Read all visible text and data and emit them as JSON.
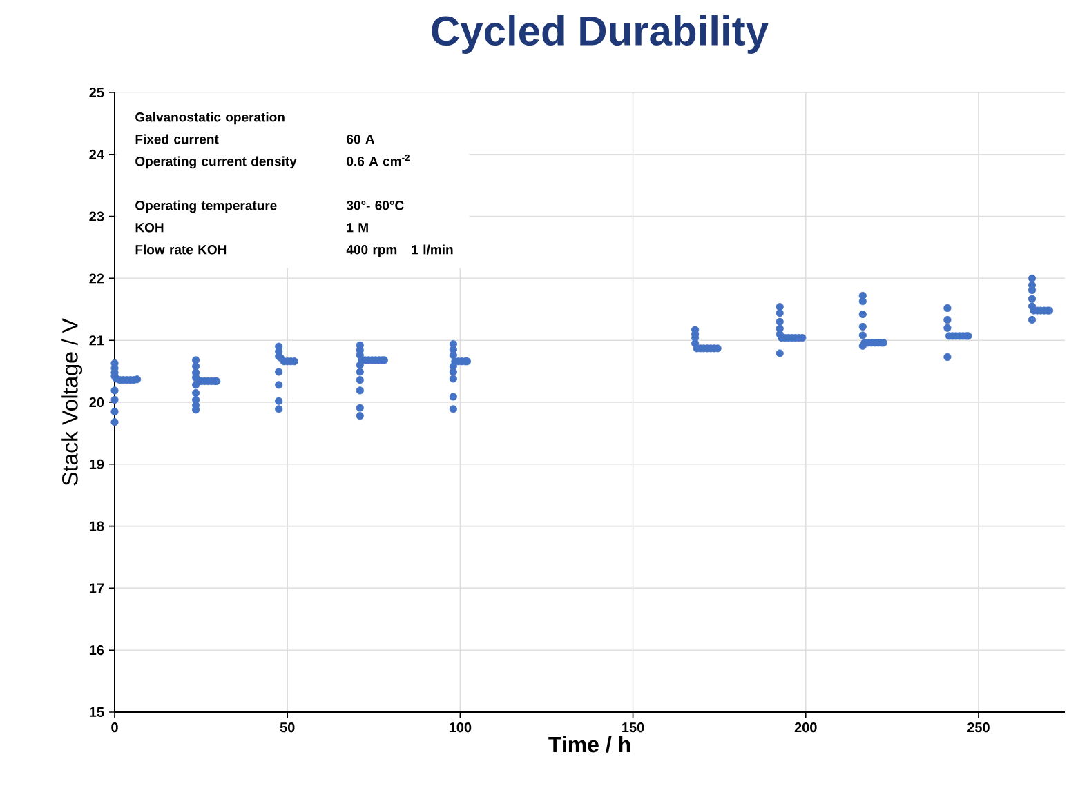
{
  "chart_data": {
    "type": "scatter",
    "title": "Cycled Durability",
    "xlabel": "Time / h",
    "ylabel": "Stack Voltage / V",
    "annotations": [
      "Galvanostatic operation",
      "Fixed current",
      "60 A",
      "Operating current density",
      "0.6 A cm$^{-2}$",
      "Operating temperature",
      "30°- 60°C",
      "KOH",
      "1 M",
      "Flow rate KOH",
      "400 rpm",
      "1 l/min"
    ],
    "xlim": [
      0,
      275
    ],
    "xticks": [
      0,
      50,
      100,
      150,
      200,
      250
    ],
    "ylim": [
      15,
      25
    ],
    "yticks": [
      15,
      16,
      17,
      18,
      19,
      20,
      21,
      22,
      23,
      24,
      25
    ],
    "grid": true,
    "marker": "circle",
    "series": [
      {
        "color": "#4472c4",
        "x": [
          0,
          0,
          0,
          0,
          0,
          0,
          0,
          0,
          0.5,
          1.5,
          2.5,
          3.5,
          4.5,
          5.5,
          6.5,
          23.5,
          23.5,
          23.5,
          23.5,
          23.5,
          23.5,
          23.5,
          23.5,
          23.5,
          24,
          25,
          26,
          27,
          28,
          29,
          29.5,
          47.5,
          47.5,
          47.5,
          47.5,
          47.5,
          47.5,
          47.5,
          48,
          49,
          50,
          51,
          52,
          71,
          71,
          71,
          71,
          71,
          71,
          71,
          71,
          71,
          71.5,
          72.5,
          73.5,
          74.5,
          75.5,
          76.5,
          77.5,
          78,
          98,
          98,
          98,
          98,
          98,
          98,
          98,
          98,
          98.5,
          99.5,
          100.5,
          101.5,
          102,
          168,
          168,
          168,
          168,
          168.5,
          169.5,
          170.5,
          171.5,
          172.5,
          173.5,
          174.5,
          192.5,
          192.5,
          192.5,
          192.5,
          192.5,
          192.5,
          193,
          194,
          195,
          196,
          197,
          198,
          199,
          216.5,
          216.5,
          216.5,
          216.5,
          216.5,
          216.5,
          217,
          218,
          219,
          220,
          221,
          222,
          222.5,
          241,
          241,
          241,
          241,
          241.5,
          242.5,
          243.5,
          244.5,
          245.5,
          246.5,
          247,
          265.5,
          265.5,
          265.5,
          265.5,
          265.5,
          265.5,
          266,
          267,
          268,
          269,
          270,
          270.5
        ],
        "values": [
          20.63,
          20.55,
          20.48,
          20.42,
          20.19,
          20.04,
          19.85,
          19.68,
          20.38,
          20.36,
          20.36,
          20.36,
          20.36,
          20.36,
          20.37,
          20.68,
          20.58,
          20.48,
          20.4,
          20.28,
          20.15,
          20.04,
          19.95,
          19.88,
          20.34,
          20.34,
          20.34,
          20.34,
          20.34,
          20.34,
          20.34,
          20.9,
          20.82,
          20.74,
          20.49,
          20.28,
          20.02,
          19.89,
          20.72,
          20.66,
          20.66,
          20.66,
          20.66,
          20.92,
          20.84,
          20.76,
          20.6,
          20.49,
          20.36,
          20.19,
          19.91,
          19.78,
          20.68,
          20.68,
          20.68,
          20.68,
          20.68,
          20.68,
          20.68,
          20.68,
          20.94,
          20.85,
          20.76,
          20.58,
          20.49,
          20.38,
          20.09,
          19.89,
          20.66,
          20.66,
          20.66,
          20.66,
          20.66,
          21.17,
          21.1,
          21.04,
          20.95,
          20.87,
          20.87,
          20.87,
          20.87,
          20.87,
          20.87,
          20.87,
          21.54,
          21.44,
          21.3,
          21.19,
          21.1,
          20.79,
          21.04,
          21.04,
          21.04,
          21.04,
          21.04,
          21.04,
          21.04,
          21.72,
          21.63,
          21.42,
          21.22,
          21.08,
          20.91,
          20.96,
          20.96,
          20.96,
          20.96,
          20.96,
          20.96,
          20.96,
          21.52,
          21.33,
          21.2,
          20.73,
          21.07,
          21.07,
          21.07,
          21.07,
          21.07,
          21.07,
          21.07,
          22.0,
          21.89,
          21.81,
          21.67,
          21.55,
          21.33,
          21.48,
          21.48,
          21.48,
          21.48,
          21.48,
          21.48
        ]
      }
    ]
  }
}
